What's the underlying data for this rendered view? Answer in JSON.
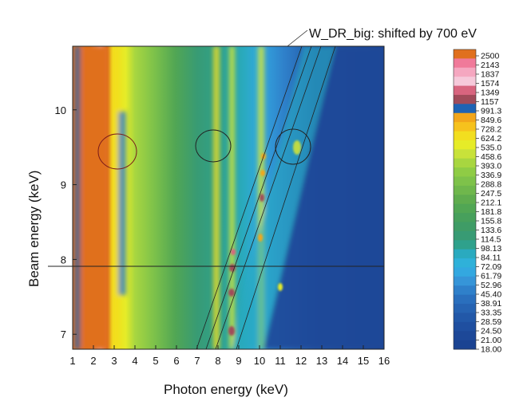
{
  "chart_data": {
    "type": "heatmap",
    "title": "W_DR_big: shifted by 700 eV",
    "xlabel": "Photon energy (keV)",
    "ylabel": "Beam energy (keV)",
    "xlim": [
      1,
      16
    ],
    "ylim": [
      6.8,
      10.85
    ],
    "x_ticks": [
      "1",
      "2",
      "3",
      "4",
      "5",
      "6",
      "7",
      "8",
      "9",
      "10",
      "11",
      "12",
      "13",
      "14",
      "15",
      "16"
    ],
    "y_ticks": [
      "7",
      "8",
      "9",
      "10"
    ],
    "y_tick_values": [
      7,
      8,
      9,
      10
    ],
    "colorbar_labels": [
      "2500",
      "2143",
      "1837",
      "1574",
      "1349",
      "1157",
      "991.3",
      "849.6",
      "728.2",
      "624.2",
      "535.0",
      "458.6",
      "393.0",
      "336.9",
      "288.8",
      "247.5",
      "212.1",
      "181.8",
      "155.8",
      "133.6",
      "114.5",
      "98.13",
      "84.11",
      "72.09",
      "61.79",
      "52.96",
      "45.40",
      "38.91",
      "33.35",
      "28.59",
      "24.50",
      "21.00",
      "18.00"
    ],
    "colorbar_colors": [
      "#e0701e",
      "#f07a9a",
      "#f5a7c0",
      "#f6c9da",
      "#d8657f",
      "#a04b5a",
      "#1e63b4",
      "#f2a61b",
      "#f6c21d",
      "#f2de1f",
      "#e6ec28",
      "#c8e23a",
      "#a8d640",
      "#8fcc45",
      "#7ec24a",
      "#6fb74c",
      "#5fac4e",
      "#51a654",
      "#47a05c",
      "#3f9c66",
      "#389b74",
      "#2fa18c",
      "#2aaabf",
      "#2fb1d9",
      "#33a8e0",
      "#3695d8",
      "#2f80ca",
      "#2a6fbd",
      "#2663b2",
      "#2258a8",
      "#1f4fa0",
      "#1d4898",
      "#1a4392"
    ],
    "grid": false,
    "legend": "colorbar-right"
  }
}
